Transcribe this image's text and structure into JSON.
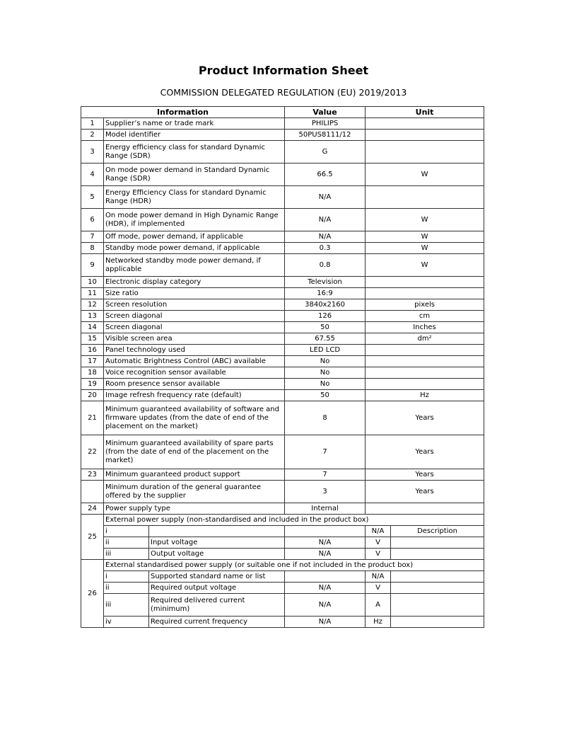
{
  "title": "Product Information Sheet",
  "subtitle": "COMMISSION DELEGATED REGULATION (EU) 2019/2013",
  "headers": {
    "info": "Information",
    "value": "Value",
    "unit": "Unit"
  },
  "rows": [
    {
      "n": "1",
      "v": "PHILIPS",
      "info": "Supplier’s name or trade mark",
      "value": "",
      "unit": "",
      "h": 16
    },
    {
      "n": "2",
      "v": "50PUS8111/12",
      "info": "Model identifier",
      "value": "",
      "unit": "",
      "h": 16
    },
    {
      "n": "3",
      "v": "",
      "info": "Energy efficiency class for standard Dynamic Range (SDR)",
      "value": "G",
      "unit": "",
      "h": 32
    },
    {
      "n": "4",
      "v": "66.5",
      "info": "On mode power demand in Standard Dynamic Range (SDR)",
      "value": "",
      "unit": "W",
      "h": 32
    },
    {
      "n": "5",
      "v": "N/A",
      "info": "Energy Efficiency Class for standard Dynamic Range (HDR)",
      "value": "",
      "unit": "",
      "h": 32
    },
    {
      "n": "6",
      "v": "N/A",
      "info": "On mode power demand in High Dynamic Range (HDR), if implemented",
      "value": "",
      "unit": "W",
      "h": 32
    },
    {
      "n": "7",
      "v": "N/A",
      "info": "Off mode, power demand, if applicable",
      "value": "",
      "unit": "W",
      "h": 16
    },
    {
      "n": "8",
      "v": "0.3",
      "info": "Standby mode power demand, if applicable",
      "value": "",
      "unit": "W",
      "h": 16
    },
    {
      "n": "9",
      "v": "0.8",
      "info": "Networked standby mode power demand, if applicable",
      "value": "",
      "unit": "W",
      "h": 32
    },
    {
      "n": "10",
      "v": "Television",
      "info": "Electronic display category",
      "value": "",
      "unit": "",
      "h": 16
    },
    {
      "n": "11",
      "v": "16:9",
      "info": "Size ratio",
      "value": "",
      "unit": "",
      "h": 16
    },
    {
      "n": "12",
      "v": "3840x2160",
      "info": "Screen resolution",
      "value": "",
      "unit": "pixels",
      "h": 16
    },
    {
      "n": "13",
      "v": "126",
      "info": "Screen diagonal",
      "value": "",
      "unit": "cm",
      "h": 16
    },
    {
      "n": "14",
      "v": "50",
      "info": "Screen diagonal",
      "value": "",
      "unit": "Inches",
      "h": 16
    },
    {
      "n": "15",
      "v": "67.55",
      "info": "Visible screen area",
      "value": "",
      "unit": "dm²",
      "h": 16
    },
    {
      "n": "16",
      "v": "LED LCD",
      "info": "Panel technology used",
      "value": "",
      "unit": "",
      "h": 16
    },
    {
      "n": "17",
      "v": "No",
      "info": "Automatic Brightness Control (ABC) available",
      "value": "",
      "unit": "",
      "h": 16
    },
    {
      "n": "18",
      "v": "No",
      "info": "Voice recognition sensor available",
      "value": "",
      "unit": "",
      "h": 16
    },
    {
      "n": "19",
      "v": "No",
      "info": "Room presence sensor available",
      "value": "",
      "unit": "",
      "h": 16
    },
    {
      "n": "20",
      "v": "50",
      "info": "Image refresh frequency rate (default)",
      "value": "",
      "unit": "Hz",
      "h": 16
    },
    {
      "n": "21",
      "v": "",
      "info": "Minimum guaranteed availability of software and firmware updates (from the date of end of the placement on the market)",
      "value": "8",
      "unit": "Years",
      "h": 48
    },
    {
      "n": "22",
      "v": "",
      "info": "Minimum guaranteed availability of spare parts (from the date of end of the placement on the market)",
      "value": "7",
      "unit": "Years",
      "h": 48
    },
    {
      "n": "23",
      "v": "",
      "info": "Minimum guaranteed product support",
      "value": "7",
      "unit": "Years",
      "h": 16
    },
    {
      "n": "",
      "v": "",
      "info": "Minimum duration of the general guarantee offered by the supplier",
      "value": "3",
      "unit": "Years",
      "h": 32
    },
    {
      "n": "24",
      "v": "Internal",
      "info": "Power supply type",
      "value": "",
      "unit": "",
      "h": 16
    }
  ],
  "ps25": {
    "n": "25",
    "title": "External power supply (non-standardised and included in the product box)",
    "rows": [
      {
        "r": "i",
        "label": "",
        "value": "",
        "unit": "N/A",
        "desc": "Description"
      },
      {
        "r": "ii",
        "label": "Input voltage",
        "value": "N/A",
        "unit": "V",
        "desc": ""
      },
      {
        "r": "iii",
        "label": "Output voltage",
        "value": "N/A",
        "unit": "V",
        "desc": ""
      }
    ]
  },
  "ps26": {
    "n": "26",
    "title": "External standardised power supply (or suitable one if not included in the product box)",
    "rows": [
      {
        "r": "i",
        "label": "Supported standard name or list",
        "value": "",
        "unit": "N/A",
        "desc": ""
      },
      {
        "r": "ii",
        "label": "Required output voltage",
        "value": "N/A",
        "unit": "V",
        "desc": ""
      },
      {
        "r": "iii",
        "label": "Required delivered current (minimum)",
        "value": "N/A",
        "unit": "A",
        "desc": ""
      },
      {
        "r": "iv",
        "label": "Required current frequency",
        "value": "N/A",
        "unit": "Hz",
        "desc": ""
      }
    ]
  }
}
